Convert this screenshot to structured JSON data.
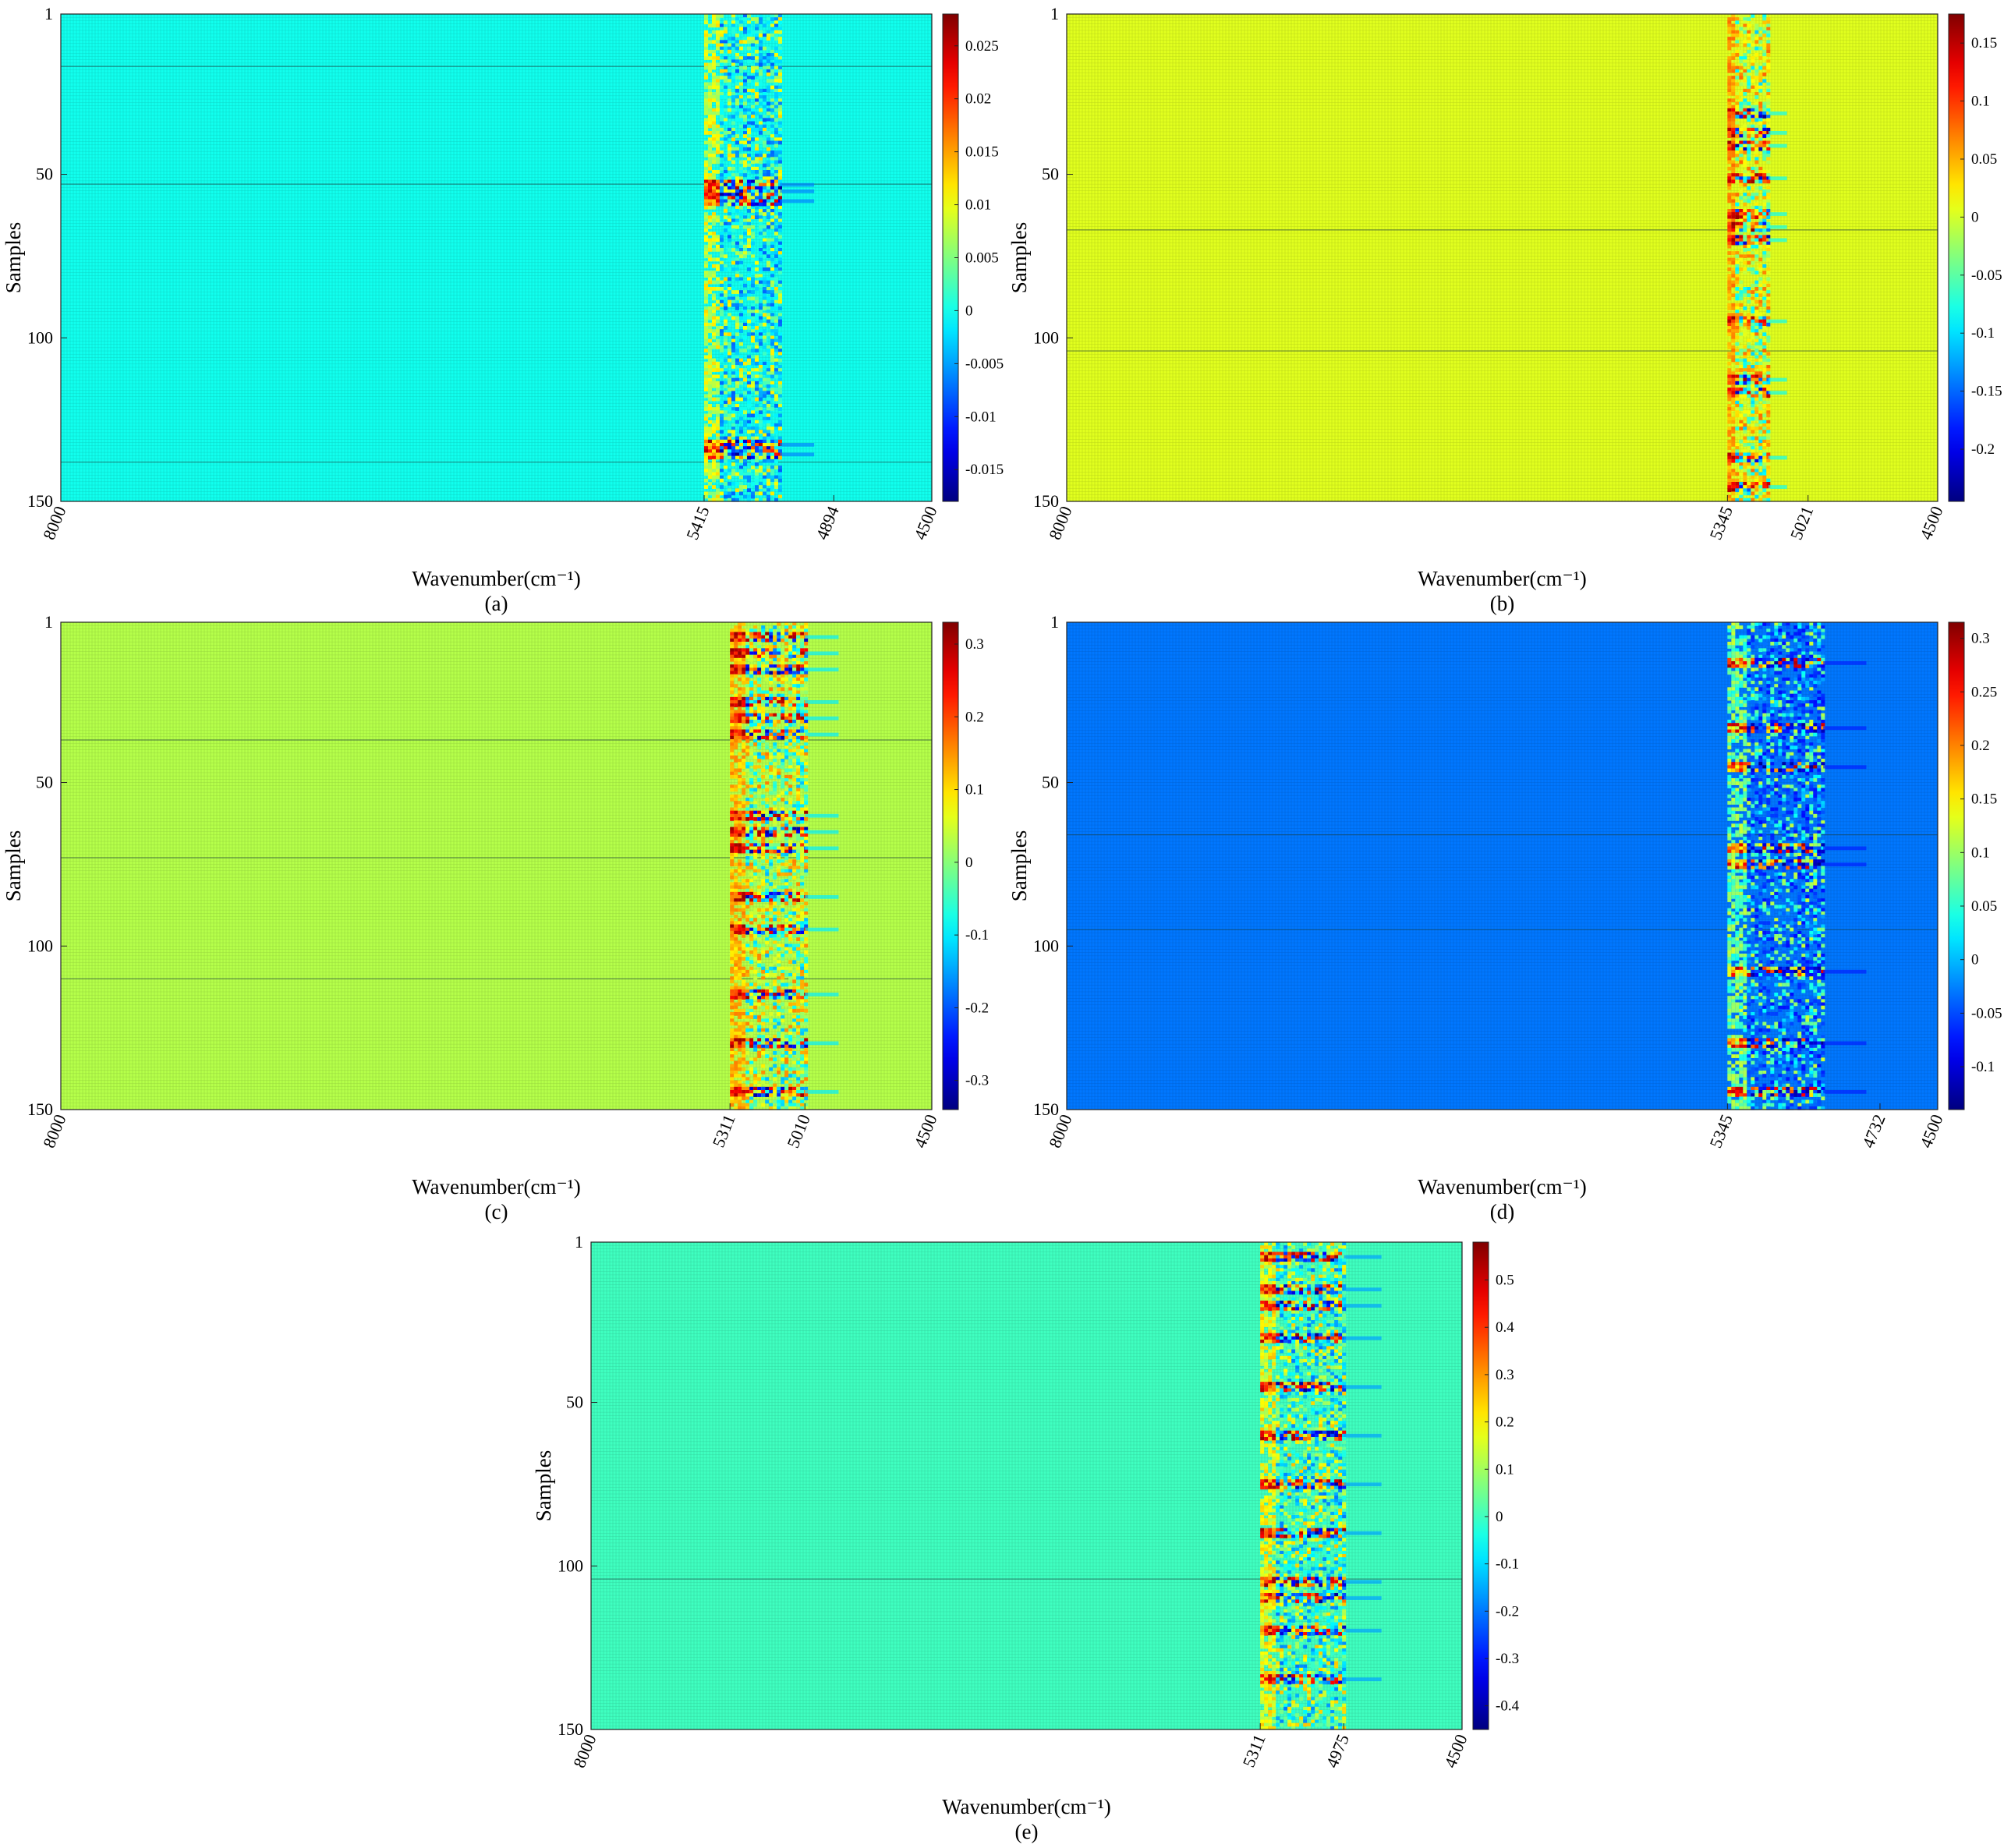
{
  "chart_data": [
    {
      "type": "heatmap",
      "panel_label": "(a)",
      "xlabel": "Wavenumber(cm⁻¹)",
      "ylabel": "Samples",
      "x_range": [
        8000,
        4500
      ],
      "x_ticks": [
        8000,
        5415,
        4894,
        4500
      ],
      "y_range": [
        1,
        150
      ],
      "y_ticks": [
        1,
        50,
        100,
        150
      ],
      "colorbar": {
        "min": -0.018,
        "max": 0.028,
        "ticks": [
          -0.015,
          -0.01,
          -0.005,
          0,
          0.005,
          0.01,
          0.015,
          0.02,
          0.025
        ],
        "tick_labels": [
          "-0.015",
          "-0.01",
          "-0.005",
          "0",
          "0.005",
          "0.01",
          "0.015",
          "0.02",
          "0.025"
        ]
      },
      "background_value": 0,
      "active_band": [
        5415,
        5110
      ],
      "strong_rows": [
        53,
        55,
        58,
        133,
        136
      ],
      "dark_rows": [
        17,
        53,
        138
      ]
    },
    {
      "type": "heatmap",
      "panel_label": "(b)",
      "xlabel": "Wavenumber(cm⁻¹)",
      "ylabel": "Samples",
      "x_range": [
        8000,
        4500
      ],
      "x_ticks": [
        8000,
        5345,
        5021,
        4500
      ],
      "y_range": [
        1,
        150
      ],
      "y_ticks": [
        1,
        50,
        100,
        150
      ],
      "colorbar": {
        "min": -0.245,
        "max": 0.175,
        "ticks": [
          -0.2,
          -0.15,
          -0.1,
          -0.05,
          0,
          0.05,
          0.1,
          0.15
        ],
        "tick_labels": [
          "-0.2",
          "-0.15",
          "-0.1",
          "-0.05",
          "0",
          "0.05",
          "0.1",
          "0.15"
        ]
      },
      "background_value": 0.005,
      "active_band": [
        5345,
        5180
      ],
      "strong_rows": [
        31,
        37,
        41,
        51,
        62,
        66,
        70,
        95,
        113,
        117,
        137,
        146
      ],
      "dark_rows": [
        67,
        104
      ]
    },
    {
      "type": "heatmap",
      "panel_label": "(c)",
      "xlabel": "Wavenumber(cm⁻¹)",
      "ylabel": "Samples",
      "x_range": [
        8000,
        4500
      ],
      "x_ticks": [
        8000,
        5311,
        5010,
        4500
      ],
      "y_range": [
        1,
        150
      ],
      "y_ticks": [
        1,
        50,
        100,
        150
      ],
      "colorbar": {
        "min": -0.34,
        "max": 0.33,
        "ticks": [
          -0.3,
          -0.2,
          -0.1,
          0,
          0.1,
          0.2,
          0.3
        ],
        "tick_labels": [
          "-0.3",
          "-0.2",
          "-0.1",
          "0",
          "0.1",
          "0.2",
          "0.3"
        ]
      },
      "background_value": 0.03,
      "active_band": [
        5311,
        5010
      ],
      "strong_rows": [
        5,
        10,
        15,
        25,
        30,
        35,
        60,
        65,
        70,
        85,
        95,
        115,
        130,
        145
      ],
      "dark_rows": [
        37,
        73,
        110
      ]
    },
    {
      "type": "heatmap",
      "panel_label": "(d)",
      "xlabel": "Wavenumber(cm⁻¹)",
      "ylabel": "Samples",
      "x_range": [
        8000,
        4500
      ],
      "x_ticks": [
        8000,
        5345,
        4732,
        4500
      ],
      "y_range": [
        1,
        150
      ],
      "y_ticks": [
        1,
        50,
        100,
        150
      ],
      "colorbar": {
        "min": -0.14,
        "max": 0.315,
        "ticks": [
          -0.1,
          -0.05,
          0,
          0.05,
          0.1,
          0.15,
          0.2,
          0.25,
          0.3
        ],
        "tick_labels": [
          "-0.1",
          "-0.05",
          "0",
          "0.05",
          "0.1",
          "0.15",
          "0.2",
          "0.25",
          "0.3"
        ]
      },
      "background_value": -0.03,
      "active_band": [
        5345,
        4960
      ],
      "strong_rows": [
        13,
        33,
        45,
        70,
        75,
        108,
        130,
        145
      ],
      "dark_rows": [
        66,
        95
      ]
    },
    {
      "type": "heatmap",
      "panel_label": "(e)",
      "xlabel": "Wavenumber(cm⁻¹)",
      "ylabel": "Samples",
      "x_range": [
        8000,
        4500
      ],
      "x_ticks": [
        8000,
        5311,
        4975,
        4500
      ],
      "y_range": [
        1,
        150
      ],
      "y_ticks": [
        1,
        50,
        100,
        150
      ],
      "colorbar": {
        "min": -0.45,
        "max": 0.58,
        "ticks": [
          -0.4,
          -0.3,
          -0.2,
          -0.1,
          0,
          0.1,
          0.2,
          0.3,
          0.4,
          0.5
        ],
        "tick_labels": [
          "-0.4",
          "-0.3",
          "-0.2",
          "-0.1",
          "0",
          "0.1",
          "0.2",
          "0.3",
          "0.4",
          "0.5"
        ]
      },
      "background_value": 0.0,
      "active_band": [
        5311,
        4975
      ],
      "strong_rows": [
        5,
        15,
        20,
        30,
        45,
        60,
        75,
        90,
        105,
        110,
        120,
        135
      ],
      "dark_rows": [
        104
      ]
    }
  ]
}
